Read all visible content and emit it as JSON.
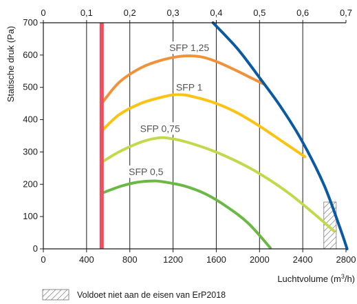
{
  "chart_data": {
    "type": "line",
    "ylabel": "Statische druk (Pa)",
    "xlabel_prefix": "Luchtvolume (m",
    "xlabel_sup": "3",
    "xlabel_suffix": "/h)",
    "xlim": [
      0,
      2800
    ],
    "ylim": [
      0,
      700
    ],
    "x_ticks": [
      "0",
      "400",
      "800",
      "1200",
      "1600",
      "2000",
      "2400",
      "2800"
    ],
    "y_ticks": [
      "0",
      "100",
      "200",
      "300",
      "400",
      "500",
      "600",
      "700"
    ],
    "top_axis_ticks": [
      "0",
      "0,1",
      "0,2",
      "0,3",
      "0,4",
      "0,5",
      "0,6",
      "0,7"
    ],
    "grid": "vertical",
    "series": [
      {
        "name": "SFP 1,25",
        "color": "#f0923a",
        "label_at": [
          1350,
          612
        ],
        "x": [
          540,
          700,
          900,
          1100,
          1300,
          1450,
          1600,
          1780,
          1900,
          2040
        ],
        "y": [
          450,
          515,
          560,
          585,
          597,
          595,
          580,
          553,
          533,
          510
        ]
      },
      {
        "name": "SFP 1",
        "color": "#fcc313",
        "label_at": [
          1350,
          490
        ],
        "x": [
          540,
          700,
          900,
          1100,
          1250,
          1400,
          1600,
          1800,
          2000,
          2200,
          2420
        ],
        "y": [
          365,
          415,
          450,
          470,
          478,
          470,
          450,
          420,
          380,
          335,
          285
        ]
      },
      {
        "name": "SFP 0,75",
        "color": "#c3d94b",
        "label_at": [
          1080,
          362
        ],
        "x": [
          540,
          700,
          900,
          1050,
          1150,
          1300,
          1500,
          1700,
          1900,
          2100,
          2300,
          2500,
          2690
        ],
        "y": [
          268,
          300,
          330,
          343,
          343,
          333,
          312,
          285,
          252,
          212,
          165,
          110,
          55
        ]
      },
      {
        "name": "SFP 0,5",
        "color": "#6cb846",
        "label_at": [
          950,
          228
        ],
        "x": [
          540,
          700,
          850,
          1000,
          1100,
          1300,
          1500,
          1700,
          1900,
          2100
        ],
        "y": [
          172,
          192,
          205,
          210,
          208,
          195,
          170,
          130,
          78,
          3
        ]
      },
      {
        "name": "",
        "color": "#0a5aa3",
        "label_at": null,
        "x": [
          1570,
          1800,
          2000,
          2200,
          2400,
          2600,
          2750,
          2810
        ],
        "y": [
          700,
          618,
          530,
          438,
          330,
          195,
          60,
          0
        ]
      }
    ],
    "limit_line": {
      "x": 540,
      "color": "#ef4f5f"
    },
    "non_compliant_region": {
      "x": [
        2595,
        2710
      ],
      "y": [
        0,
        145
      ]
    },
    "legend": {
      "text": "Voldoet niet aan de eisen van ErP2018",
      "placement": "bottom-left"
    }
  }
}
